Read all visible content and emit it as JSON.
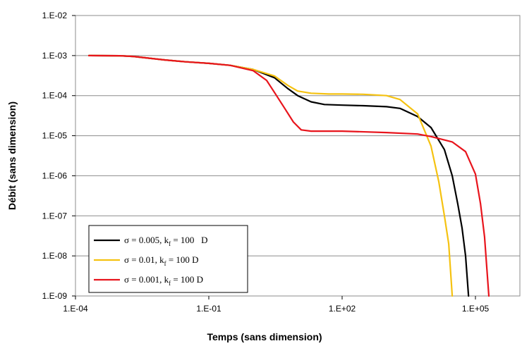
{
  "chart_data": {
    "type": "line",
    "title": "",
    "xlabel": "Temps (sans dimension)",
    "ylabel": "Débit (sans dimension)",
    "x_scale": "log",
    "y_scale": "log",
    "xlim": [
      0.0001,
      1000000
    ],
    "ylim": [
      1e-09,
      0.01
    ],
    "x_ticks": [
      {
        "value": 0.0001,
        "label": "1.E-04"
      },
      {
        "value": 0.1,
        "label": "1.E-01"
      },
      {
        "value": 100,
        "label": "1.E+02"
      },
      {
        "value": 100000,
        "label": "1.E+05"
      }
    ],
    "y_ticks": [
      {
        "value": 0.01,
        "label": "1.E-02"
      },
      {
        "value": 0.001,
        "label": "1.E-03"
      },
      {
        "value": 0.0001,
        "label": "1.E-04"
      },
      {
        "value": 1e-05,
        "label": "1.E-05"
      },
      {
        "value": 1e-06,
        "label": "1.E-06"
      },
      {
        "value": 1e-07,
        "label": "1.E-07"
      },
      {
        "value": 1e-08,
        "label": "1.E-08"
      },
      {
        "value": 1e-09,
        "label": "1.E-09"
      }
    ],
    "grid": "horizontal",
    "legend_position": "bottom-left",
    "series": [
      {
        "legend": {
          "prefix": "σ = 0.005, k",
          "sub": "f",
          "suffix": " = 100   D"
        },
        "color": "#000000",
        "points": [
          [
            0.0002,
            0.001
          ],
          [
            0.001,
            0.00099
          ],
          [
            0.002,
            0.00095
          ],
          [
            0.005,
            0.00085
          ],
          [
            0.01,
            0.00078
          ],
          [
            0.03,
            0.0007
          ],
          [
            0.1,
            0.00064
          ],
          [
            0.3,
            0.00057
          ],
          [
            1,
            0.00045
          ],
          [
            3,
            0.00028
          ],
          [
            6,
            0.00015
          ],
          [
            10,
            0.0001
          ],
          [
            20,
            7e-05
          ],
          [
            40,
            6e-05
          ],
          [
            100,
            5.8e-05
          ],
          [
            300,
            5.6e-05
          ],
          [
            1000,
            5.3e-05
          ],
          [
            2000,
            4.8e-05
          ],
          [
            5000,
            3e-05
          ],
          [
            10000,
            1.6e-05
          ],
          [
            20000,
            4.5e-06
          ],
          [
            30000,
            1e-06
          ],
          [
            40000,
            2e-07
          ],
          [
            50000,
            5e-08
          ],
          [
            60000,
            1e-08
          ],
          [
            70000,
            1e-09
          ]
        ]
      },
      {
        "legend": {
          "prefix": "σ = 0.01, k",
          "sub": "f",
          "suffix": " = 100 D"
        },
        "color": "#f5c211",
        "points": [
          [
            0.0002,
            0.001
          ],
          [
            0.001,
            0.00099
          ],
          [
            0.002,
            0.00095
          ],
          [
            0.005,
            0.00085
          ],
          [
            0.01,
            0.00078
          ],
          [
            0.03,
            0.0007
          ],
          [
            0.1,
            0.00064
          ],
          [
            0.3,
            0.00057
          ],
          [
            1,
            0.00045
          ],
          [
            3,
            0.00031
          ],
          [
            6,
            0.00018
          ],
          [
            10,
            0.00013
          ],
          [
            20,
            0.000115
          ],
          [
            50,
            0.00011
          ],
          [
            100,
            0.00011
          ],
          [
            300,
            0.000108
          ],
          [
            1000,
            0.0001
          ],
          [
            2000,
            8e-05
          ],
          [
            5000,
            3.5e-05
          ],
          [
            10000,
            5.5e-06
          ],
          [
            15000,
            7e-07
          ],
          [
            20000,
            1e-07
          ],
          [
            25000,
            2e-08
          ],
          [
            30000,
            1e-09
          ]
        ]
      },
      {
        "legend": {
          "prefix": "σ = 0.001, k",
          "sub": "f",
          "suffix": " = 100 D"
        },
        "color": "#e8141c",
        "points": [
          [
            0.0002,
            0.001
          ],
          [
            0.001,
            0.00099
          ],
          [
            0.002,
            0.00095
          ],
          [
            0.005,
            0.00085
          ],
          [
            0.01,
            0.00078
          ],
          [
            0.03,
            0.0007
          ],
          [
            0.1,
            0.00064
          ],
          [
            0.3,
            0.00057
          ],
          [
            1,
            0.00042
          ],
          [
            2,
            0.00024
          ],
          [
            3,
            0.00012
          ],
          [
            5,
            5e-05
          ],
          [
            8,
            2.2e-05
          ],
          [
            12,
            1.4e-05
          ],
          [
            20,
            1.3e-05
          ],
          [
            100,
            1.3e-05
          ],
          [
            1000,
            1.2e-05
          ],
          [
            5000,
            1.1e-05
          ],
          [
            10000,
            9.5e-06
          ],
          [
            30000,
            7e-06
          ],
          [
            60000,
            4e-06
          ],
          [
            100000,
            1.1e-06
          ],
          [
            130000,
            2e-07
          ],
          [
            160000,
            3e-08
          ],
          [
            200000,
            1e-09
          ]
        ]
      }
    ]
  }
}
